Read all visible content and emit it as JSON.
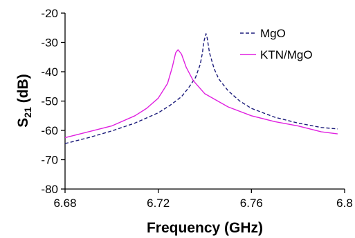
{
  "chart_data": {
    "type": "line",
    "title": "",
    "xlabel": "Frequency (GHz)",
    "ylabel_main": "S",
    "ylabel_sub": "21",
    "ylabel_unit": " (dB)",
    "xlim": [
      6.68,
      6.8
    ],
    "ylim": [
      -80,
      -20
    ],
    "x_ticks": [
      6.68,
      6.72,
      6.76,
      6.8
    ],
    "x_tick_labels": [
      "6.68",
      "6.72",
      "6.76",
      "6.8"
    ],
    "y_ticks": [
      -20,
      -30,
      -40,
      -50,
      -60,
      -70,
      -80
    ],
    "y_tick_labels": [
      "-20",
      "-30",
      "-40",
      "-50",
      "-60",
      "-70",
      "-80"
    ],
    "grid": false,
    "legend_position": "top-right",
    "series": [
      {
        "name": "MgO",
        "color": "#1a1a7a",
        "dash": "dashed",
        "x": [
          6.68,
          6.69,
          6.7,
          6.71,
          6.72,
          6.725,
          6.73,
          6.733,
          6.736,
          6.738,
          6.739,
          6.7395,
          6.7405,
          6.741,
          6.742,
          6.744,
          6.746,
          6.75,
          6.755,
          6.76,
          6.77,
          6.78,
          6.79,
          6.797
        ],
        "y": [
          -64.5,
          -62.5,
          -60.2,
          -57.5,
          -54,
          -51.5,
          -48.5,
          -45.5,
          -42,
          -37.5,
          -33.5,
          -30,
          -27,
          -28.5,
          -33.5,
          -39,
          -42.5,
          -46.5,
          -50,
          -52.5,
          -55.5,
          -57.5,
          -59,
          -59.5
        ]
      },
      {
        "name": "KTN/MgO",
        "color": "#e020e0",
        "dash": "solid",
        "x": [
          6.68,
          6.69,
          6.7,
          6.71,
          6.715,
          6.72,
          6.724,
          6.726,
          6.7275,
          6.7285,
          6.73,
          6.732,
          6.735,
          6.74,
          6.75,
          6.76,
          6.77,
          6.78,
          6.79,
          6.797
        ],
        "y": [
          -62.5,
          -60.5,
          -58.5,
          -55,
          -52.5,
          -49,
          -44,
          -38.5,
          -33.5,
          -32.5,
          -34,
          -38.5,
          -43,
          -47.5,
          -52,
          -55,
          -57,
          -58.5,
          -60.5,
          -61.2
        ]
      }
    ]
  }
}
